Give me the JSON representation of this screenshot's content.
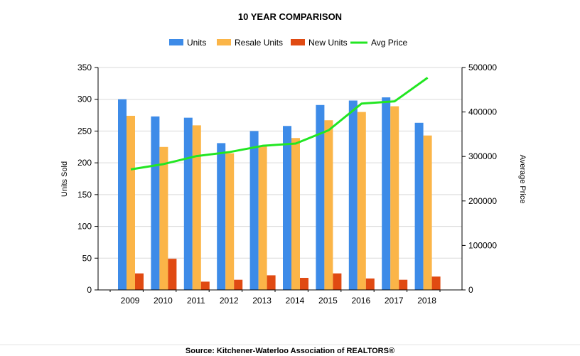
{
  "chart_data": {
    "type": "bar",
    "title": "10 YEAR COMPARISON",
    "categories": [
      "2009",
      "2010",
      "2011",
      "2012",
      "2013",
      "2014",
      "2015",
      "2016",
      "2017",
      "2018"
    ],
    "series": [
      {
        "name": "Units",
        "kind": "bar",
        "color": "#3d8be8",
        "axis": "left",
        "values": [
          300,
          273,
          271,
          231,
          250,
          258,
          291,
          298,
          303,
          263
        ]
      },
      {
        "name": "Resale Units",
        "kind": "bar",
        "color": "#fbb548",
        "axis": "left",
        "values": [
          274,
          225,
          259,
          215,
          227,
          239,
          267,
          280,
          289,
          243
        ]
      },
      {
        "name": "New Units",
        "kind": "bar",
        "color": "#e04a12",
        "axis": "left",
        "values": [
          26,
          49,
          13,
          16,
          23,
          19,
          26,
          18,
          16,
          21
        ]
      },
      {
        "name": "Avg Price",
        "kind": "line",
        "color": "#22e622",
        "axis": "right",
        "values": [
          271000,
          283000,
          301000,
          310000,
          324000,
          329000,
          359000,
          419000,
          424000,
          477000
        ]
      }
    ],
    "ylabel": "Units Sold",
    "y2label": "Average Price",
    "ylim": [
      0,
      350
    ],
    "y2lim": [
      0,
      500000
    ],
    "yticks": [
      "0",
      "50",
      "100",
      "150",
      "200",
      "250",
      "300",
      "350"
    ],
    "y2ticks": [
      "0",
      "100000",
      "200000",
      "300000",
      "400000",
      "500000"
    ],
    "grid": true,
    "legend_position": "top-center",
    "source": "Source: Kitchener-Waterloo Association of REALTORS®"
  }
}
